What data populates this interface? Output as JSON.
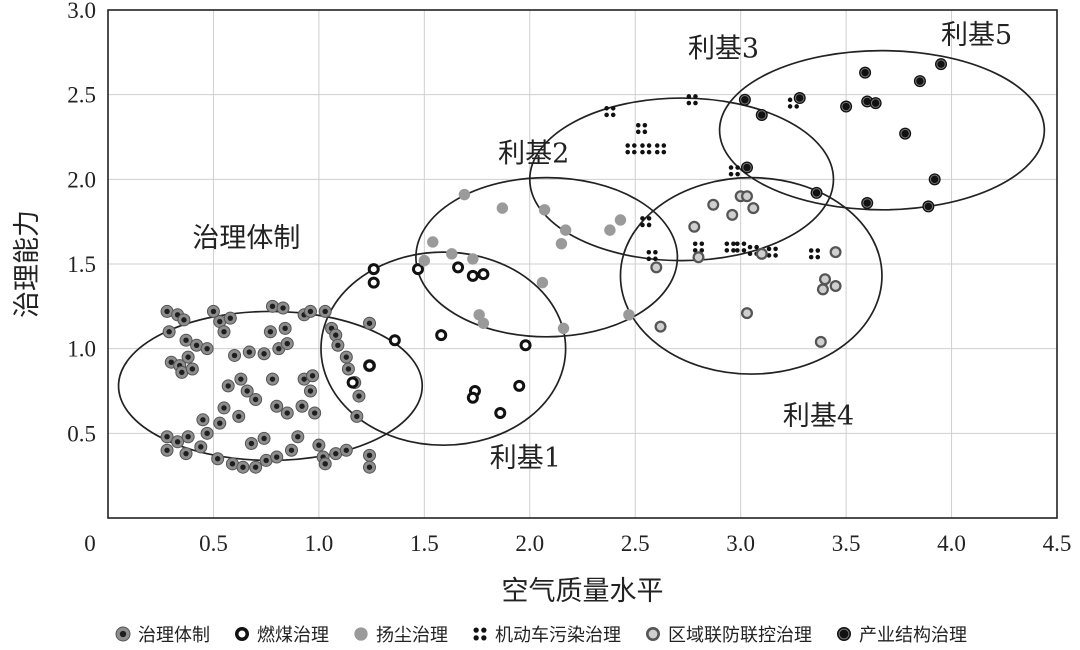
{
  "chart_data": {
    "type": "scatter",
    "xlabel": "空气质量水平",
    "ylabel": "治理能力",
    "xlim": [
      0,
      4.5
    ],
    "ylim": [
      0,
      3.0
    ],
    "xticks": [
      "0",
      "0.5",
      "1.0",
      "1.5",
      "2.0",
      "2.5",
      "3.0",
      "3.5",
      "4.0",
      "4.5"
    ],
    "yticks": [
      "0.5",
      "1.0",
      "1.5",
      "2.0",
      "2.5",
      "3.0"
    ],
    "grid": true,
    "legend_position": "bottom",
    "series": [
      {
        "name": "治理体制",
        "marker": "gray-ring-dark-center",
        "points": [
          [
            0.28,
            1.22
          ],
          [
            0.33,
            1.2
          ],
          [
            0.36,
            1.17
          ],
          [
            0.29,
            1.1
          ],
          [
            0.37,
            1.05
          ],
          [
            0.42,
            1.02
          ],
          [
            0.3,
            0.92
          ],
          [
            0.34,
            0.9
          ],
          [
            0.38,
            0.95
          ],
          [
            0.35,
            0.86
          ],
          [
            0.4,
            0.88
          ],
          [
            0.47,
            1.0
          ],
          [
            0.5,
            1.22
          ],
          [
            0.53,
            1.16
          ],
          [
            0.58,
            1.18
          ],
          [
            0.55,
            1.1
          ],
          [
            0.6,
            0.96
          ],
          [
            0.67,
            0.98
          ],
          [
            0.63,
            0.82
          ],
          [
            0.57,
            0.78
          ],
          [
            0.66,
            0.75
          ],
          [
            0.7,
            0.7
          ],
          [
            0.55,
            0.65
          ],
          [
            0.62,
            0.6
          ],
          [
            0.53,
            0.56
          ],
          [
            0.45,
            0.58
          ],
          [
            0.47,
            0.5
          ],
          [
            0.28,
            0.48
          ],
          [
            0.33,
            0.45
          ],
          [
            0.38,
            0.48
          ],
          [
            0.28,
            0.4
          ],
          [
            0.37,
            0.38
          ],
          [
            0.44,
            0.42
          ],
          [
            0.52,
            0.35
          ],
          [
            0.59,
            0.32
          ],
          [
            0.64,
            0.3
          ],
          [
            0.7,
            0.3
          ],
          [
            0.75,
            0.34
          ],
          [
            0.8,
            0.36
          ],
          [
            0.68,
            0.44
          ],
          [
            0.74,
            0.47
          ],
          [
            0.78,
            1.25
          ],
          [
            0.83,
            1.24
          ],
          [
            0.77,
            1.1
          ],
          [
            0.84,
            1.12
          ],
          [
            0.74,
            0.97
          ],
          [
            0.81,
            1.0
          ],
          [
            0.85,
            1.03
          ],
          [
            0.78,
            0.82
          ],
          [
            0.8,
            0.66
          ],
          [
            0.85,
            0.62
          ],
          [
            0.92,
            0.66
          ],
          [
            0.9,
            0.48
          ],
          [
            0.87,
            0.4
          ],
          [
            0.93,
            1.2
          ],
          [
            0.96,
            1.22
          ],
          [
            0.93,
            0.82
          ],
          [
            0.97,
            0.84
          ],
          [
            0.96,
            0.75
          ],
          [
            0.98,
            0.62
          ],
          [
            1.0,
            0.43
          ],
          [
            1.02,
            0.36
          ],
          [
            1.03,
            0.32
          ],
          [
            1.08,
            0.38
          ],
          [
            1.13,
            0.4
          ],
          [
            1.03,
            1.22
          ],
          [
            1.06,
            1.12
          ],
          [
            1.08,
            1.08
          ],
          [
            1.09,
            1.02
          ],
          [
            1.13,
            0.95
          ],
          [
            1.14,
            0.88
          ],
          [
            1.17,
            0.8
          ],
          [
            1.19,
            0.72
          ],
          [
            1.18,
            0.6
          ],
          [
            1.24,
            0.37
          ],
          [
            1.24,
            0.3
          ],
          [
            1.24,
            1.15
          ],
          [
            1.24,
            0.9
          ]
        ]
      },
      {
        "name": "燃煤治理",
        "marker": "white-center-dark-ring",
        "points": [
          [
            1.26,
            1.47
          ],
          [
            1.26,
            1.39
          ],
          [
            1.36,
            1.05
          ],
          [
            1.47,
            1.47
          ],
          [
            1.58,
            1.08
          ],
          [
            1.66,
            1.48
          ],
          [
            1.73,
            1.43
          ],
          [
            1.78,
            1.44
          ],
          [
            1.74,
            0.75
          ],
          [
            1.73,
            0.71
          ],
          [
            1.86,
            0.62
          ],
          [
            1.95,
            0.78
          ],
          [
            1.98,
            1.02
          ],
          [
            1.16,
            0.8
          ],
          [
            1.24,
            0.9
          ]
        ]
      },
      {
        "name": "扬尘治理",
        "marker": "gray-dot",
        "points": [
          [
            1.54,
            1.63
          ],
          [
            1.63,
            1.56
          ],
          [
            1.69,
            1.91
          ],
          [
            1.73,
            1.53
          ],
          [
            1.76,
            1.2
          ],
          [
            1.78,
            1.15
          ],
          [
            1.87,
            1.83
          ],
          [
            2.06,
            1.39
          ],
          [
            2.07,
            1.82
          ],
          [
            2.15,
            1.62
          ],
          [
            2.16,
            1.12
          ],
          [
            2.17,
            1.7
          ],
          [
            2.38,
            1.7
          ],
          [
            2.43,
            1.76
          ],
          [
            2.47,
            1.2
          ],
          [
            1.5,
            1.52
          ]
        ]
      },
      {
        "name": "机动车污染治理",
        "marker": "four-dot-cluster",
        "points": [
          [
            2.38,
            2.4
          ],
          [
            2.48,
            2.18
          ],
          [
            2.53,
            2.3
          ],
          [
            2.55,
            2.18
          ],
          [
            2.62,
            2.18
          ],
          [
            2.58,
            1.55
          ],
          [
            2.55,
            1.75
          ],
          [
            2.77,
            2.47
          ],
          [
            2.8,
            1.6
          ],
          [
            2.95,
            1.6
          ],
          [
            2.97,
            2.05
          ],
          [
            3.0,
            1.6
          ],
          [
            3.06,
            1.58
          ],
          [
            3.15,
            1.57
          ],
          [
            3.25,
            2.45
          ],
          [
            3.35,
            1.56
          ]
        ]
      },
      {
        "name": "区域联防联控治理",
        "marker": "light-gray-dark-ring",
        "points": [
          [
            2.6,
            1.48
          ],
          [
            2.62,
            1.13
          ],
          [
            2.78,
            1.72
          ],
          [
            2.8,
            1.54
          ],
          [
            2.87,
            1.85
          ],
          [
            2.96,
            1.79
          ],
          [
            3.0,
            1.9
          ],
          [
            3.03,
            1.9
          ],
          [
            3.06,
            1.83
          ],
          [
            3.03,
            1.21
          ],
          [
            3.1,
            1.56
          ],
          [
            3.39,
            1.35
          ],
          [
            3.4,
            1.41
          ],
          [
            3.45,
            1.37
          ],
          [
            3.45,
            1.57
          ],
          [
            3.38,
            1.04
          ]
        ]
      },
      {
        "name": "产业结构治理",
        "marker": "black-dot-gray-ring",
        "points": [
          [
            3.02,
            2.47
          ],
          [
            3.1,
            2.38
          ],
          [
            3.03,
            2.07
          ],
          [
            3.28,
            2.48
          ],
          [
            3.36,
            1.92
          ],
          [
            3.5,
            2.43
          ],
          [
            3.59,
            2.63
          ],
          [
            3.6,
            2.46
          ],
          [
            3.64,
            2.45
          ],
          [
            3.78,
            2.27
          ],
          [
            3.85,
            2.58
          ],
          [
            3.95,
            2.68
          ],
          [
            3.6,
            1.86
          ],
          [
            3.92,
            2.0
          ],
          [
            3.89,
            1.84
          ]
        ]
      }
    ],
    "groups": [
      {
        "label": "治理体制",
        "cx": 0.77,
        "cy": 0.78,
        "rx": 0.72,
        "ry": 0.44,
        "label_x": 0.4,
        "label_y": 1.6
      },
      {
        "label": "利基1",
        "cx": 1.59,
        "cy": 1.0,
        "rx": 0.58,
        "ry": 0.57,
        "label_x": 1.81,
        "label_y": 0.3
      },
      {
        "label": "利基2",
        "cx": 2.08,
        "cy": 1.54,
        "rx": 0.62,
        "ry": 0.47,
        "label_x": 1.85,
        "label_y": 2.1
      },
      {
        "label": "利基3",
        "cx": 2.72,
        "cy": 2.0,
        "rx": 0.72,
        "ry": 0.48,
        "label_x": 2.75,
        "label_y": 2.72
      },
      {
        "label": "利基4",
        "cx": 3.05,
        "cy": 1.43,
        "rx": 0.62,
        "ry": 0.58,
        "label_x": 3.2,
        "label_y": 0.55
      },
      {
        "label": "利基5",
        "cx": 3.67,
        "cy": 2.29,
        "rx": 0.77,
        "ry": 0.47,
        "label_x": 3.95,
        "label_y": 2.8
      }
    ]
  }
}
